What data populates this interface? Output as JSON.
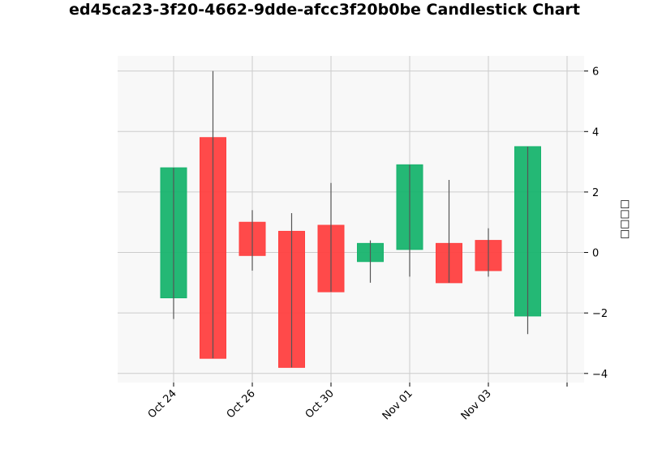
{
  "chart_data": {
    "type": "candlestick",
    "title": "ed45ca23-3f20-4662-9dde-afcc3f20b0be Candlestick Chart",
    "xlabel": "",
    "ylabel": "□□□□",
    "ylim": [
      -4.3,
      6.5
    ],
    "y_ticks": [
      -4,
      -2,
      0,
      2,
      4,
      6
    ],
    "y_tick_labels": [
      "−4",
      "−2",
      "0",
      "2",
      "4",
      "6"
    ],
    "x_tick_labels": [
      "Oct 24",
      "Oct 26",
      "Oct 30",
      "Nov 01",
      "Nov 03",
      ""
    ],
    "grid": true,
    "colors": {
      "up": "#18b46e",
      "down": "#ff4040",
      "wick": "#555555",
      "grid": "#cccccc",
      "plot_bg": "#f8f8f8"
    },
    "candles": [
      {
        "open": -1.5,
        "high": 2.8,
        "low": -2.2,
        "close": 2.8
      },
      {
        "open": 3.8,
        "high": 6.0,
        "low": -3.5,
        "close": -3.5
      },
      {
        "open": 1.0,
        "high": 1.4,
        "low": -0.6,
        "close": -0.1
      },
      {
        "open": 0.7,
        "high": 1.3,
        "low": -3.8,
        "close": -3.8
      },
      {
        "open": 0.9,
        "high": 2.3,
        "low": -1.3,
        "close": -1.3
      },
      {
        "open": -0.3,
        "high": 0.4,
        "low": -1.0,
        "close": 0.3
      },
      {
        "open": 0.1,
        "high": 2.9,
        "low": -0.8,
        "close": 2.9
      },
      {
        "open": 0.3,
        "high": 2.4,
        "low": -1.0,
        "close": -1.0
      },
      {
        "open": 0.4,
        "high": 0.8,
        "low": -0.8,
        "close": -0.6
      },
      {
        "open": -2.1,
        "high": 3.5,
        "low": -2.7,
        "close": 3.5
      }
    ]
  }
}
